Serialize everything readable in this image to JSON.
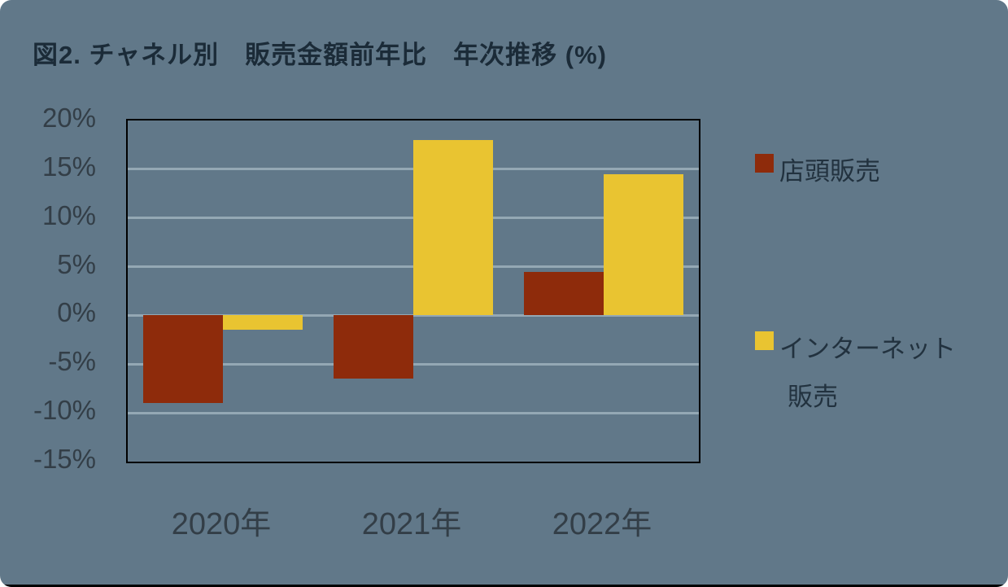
{
  "title": "図2. チャネル別　販売金額前年比　年次推移 (%)",
  "colors": {
    "background": "#617889",
    "grid": "#94a8b4",
    "plot_border": "#000000",
    "title_text": "#1b2b38",
    "axis_text": "#333e47",
    "legend_text": "#22323f",
    "series_store": "#8e2b0b",
    "series_internet": "#e9c431",
    "bottom_strip": "#000000"
  },
  "chart_data": {
    "type": "bar",
    "title": "図2. チャネル別　販売金額前年比　年次推移 (%)",
    "categories": [
      "2020年",
      "2021年",
      "2022年"
    ],
    "series": [
      {
        "name": "店頭販売",
        "color": "#8e2b0b",
        "values": [
          -9,
          -6.5,
          4.5
        ]
      },
      {
        "name": "インターネット販売",
        "color": "#e9c431",
        "values": [
          -1.5,
          18,
          14.5
        ]
      }
    ],
    "xlabel": "",
    "ylabel": "",
    "ylim": [
      -15,
      20
    ],
    "ytick_step": 5,
    "ytick_labels": [
      "20%",
      "15%",
      "10%",
      "5%",
      "0%",
      "-5%",
      "-10%",
      "-15%"
    ],
    "grid": true,
    "legend_position": "right"
  },
  "legend": {
    "items": [
      {
        "lines": [
          "店頭販売"
        ],
        "color": "#8e2b0b"
      },
      {
        "lines": [
          "インターネット",
          "販売"
        ],
        "color": "#e9c431"
      }
    ]
  }
}
